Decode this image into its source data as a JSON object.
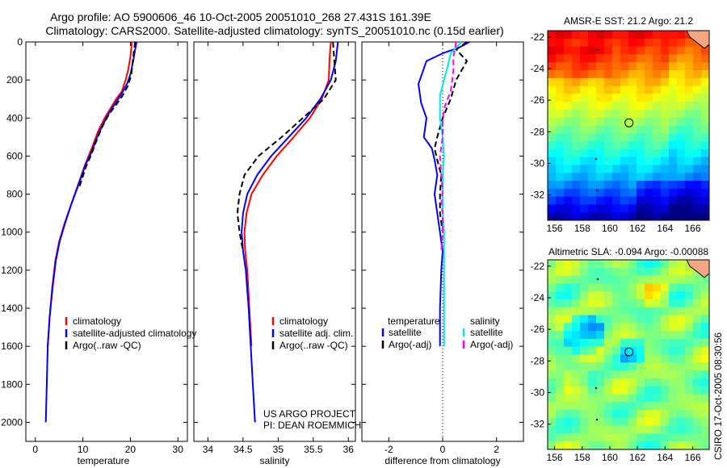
{
  "header": {
    "line1": "Argo profile: AO 5900606_46 10-Oct-2005 20051010_268 27.431S 161.39E",
    "line2": "Climatology: CARS2000. Satellite-adjusted climatology: synTS_20051010.nc (0.15d earlier)"
  },
  "side_label": "CSIRO 17-Oct-2005 08:30:56",
  "colors": {
    "red": "#ff0000",
    "blue": "#0000ff",
    "black": "#000000",
    "cyan": "#00e5ee",
    "magenta": "#ff00ff"
  },
  "chart_data": [
    {
      "type": "line",
      "name": "temperature-panel",
      "xlabel": "temperature",
      "ylabel": "",
      "xlim": [
        -2,
        32
      ],
      "ylim": [
        0,
        2100
      ],
      "y_reversed": true,
      "xticks": [
        0,
        10,
        20,
        30
      ],
      "yticks": [
        0,
        200,
        400,
        600,
        800,
        1000,
        1200,
        1400,
        1600,
        1800,
        2000
      ],
      "legend": [
        "climatology",
        "satellite-adjusted climatology",
        "Argo(..raw -QC)"
      ],
      "series": [
        {
          "name": "climatology",
          "color": "red",
          "dash": false,
          "points": [
            [
              20.3,
              0
            ],
            [
              20.2,
              30
            ],
            [
              20.0,
              80
            ],
            [
              19.5,
              150
            ],
            [
              19.0,
              200
            ],
            [
              18.2,
              260
            ],
            [
              17.0,
              300
            ],
            [
              15.8,
              350
            ],
            [
              14.6,
              400
            ],
            [
              13.2,
              470
            ],
            [
              12.0,
              550
            ],
            [
              10.4,
              650
            ],
            [
              9.0,
              750
            ],
            [
              7.6,
              850
            ],
            [
              6.2,
              950
            ],
            [
              5.0,
              1050
            ],
            [
              4.2,
              1150
            ],
            [
              3.5,
              1300
            ],
            [
              3.0,
              1450
            ],
            [
              2.6,
              1600
            ]
          ]
        },
        {
          "name": "satellite-adjusted climatology",
          "color": "blue",
          "dash": false,
          "points": [
            [
              21.3,
              0
            ],
            [
              21.0,
              40
            ],
            [
              20.6,
              100
            ],
            [
              20.0,
              170
            ],
            [
              19.3,
              220
            ],
            [
              18.2,
              270
            ],
            [
              16.9,
              320
            ],
            [
              15.6,
              370
            ],
            [
              14.3,
              430
            ],
            [
              13.0,
              500
            ],
            [
              11.8,
              580
            ],
            [
              10.5,
              650
            ],
            [
              9.1,
              750
            ],
            [
              7.6,
              850
            ],
            [
              6.3,
              950
            ],
            [
              5.1,
              1050
            ],
            [
              4.3,
              1150
            ],
            [
              3.6,
              1300
            ],
            [
              3.0,
              1450
            ],
            [
              2.6,
              1600
            ],
            [
              2.4,
              1800
            ],
            [
              2.2,
              2000
            ]
          ]
        },
        {
          "name": "Argo(..raw -QC)",
          "color": "black",
          "dash": true,
          "points": [
            [
              21.0,
              0
            ],
            [
              20.8,
              40
            ],
            [
              20.5,
              100
            ],
            [
              20.2,
              170
            ],
            [
              19.5,
              230
            ],
            [
              18.4,
              280
            ],
            [
              17.0,
              330
            ],
            [
              15.5,
              380
            ],
            [
              14.2,
              440
            ],
            [
              13.0,
              510
            ],
            [
              11.8,
              590
            ],
            [
              10.6,
              660
            ],
            [
              9.3,
              760
            ]
          ]
        }
      ]
    },
    {
      "type": "line",
      "name": "salinity-panel",
      "xlabel": "salinity",
      "ylabel": "",
      "xlim": [
        33.8,
        36.1
      ],
      "ylim": [
        0,
        2100
      ],
      "y_reversed": true,
      "xticks": [
        34,
        34.5,
        35,
        35.5,
        36
      ],
      "yticks": [
        0,
        200,
        400,
        600,
        800,
        1000,
        1200,
        1400,
        1600,
        1800,
        2000
      ],
      "legend": [
        "climatology",
        "satellite adj. clim.",
        "Argo(..raw -QC)"
      ],
      "series": [
        {
          "name": "climatology",
          "color": "red",
          "dash": false,
          "points": [
            [
              35.75,
              0
            ],
            [
              35.73,
              100
            ],
            [
              35.72,
              200
            ],
            [
              35.62,
              300
            ],
            [
              35.45,
              400
            ],
            [
              35.22,
              500
            ],
            [
              34.98,
              600
            ],
            [
              34.78,
              700
            ],
            [
              34.62,
              800
            ],
            [
              34.55,
              900
            ],
            [
              34.52,
              1000
            ],
            [
              34.53,
              1100
            ],
            [
              34.56,
              1200
            ],
            [
              34.59,
              1400
            ],
            [
              34.62,
              1600
            ]
          ]
        },
        {
          "name": "satellite adj. clim.",
          "color": "blue",
          "dash": false,
          "points": [
            [
              35.85,
              0
            ],
            [
              35.82,
              100
            ],
            [
              35.75,
              200
            ],
            [
              35.6,
              300
            ],
            [
              35.4,
              400
            ],
            [
              35.15,
              500
            ],
            [
              34.9,
              600
            ],
            [
              34.7,
              700
            ],
            [
              34.56,
              800
            ],
            [
              34.5,
              900
            ],
            [
              34.48,
              1000
            ],
            [
              34.5,
              1100
            ],
            [
              34.54,
              1200
            ],
            [
              34.58,
              1400
            ],
            [
              34.61,
              1600
            ],
            [
              34.64,
              1800
            ],
            [
              34.67,
              2000
            ]
          ]
        },
        {
          "name": "Argo(..raw -QC)",
          "color": "black",
          "dash": true,
          "points": [
            [
              35.78,
              0
            ],
            [
              35.8,
              100
            ],
            [
              35.82,
              200
            ],
            [
              35.65,
              300
            ],
            [
              35.35,
              400
            ],
            [
              35.05,
              500
            ],
            [
              34.72,
              600
            ],
            [
              34.52,
              700
            ],
            [
              34.45,
              800
            ],
            [
              34.42,
              900
            ],
            [
              34.45,
              1000
            ],
            [
              34.5,
              1100
            ]
          ]
        }
      ]
    },
    {
      "type": "line",
      "name": "difference-panel",
      "xlabel": "difference from climatology",
      "ylabel": "",
      "xlim": [
        -3,
        3
      ],
      "ylim": [
        0,
        2100
      ],
      "y_reversed": true,
      "xticks": [
        -2,
        0,
        2
      ],
      "yticks": [
        0,
        200,
        400,
        600,
        800,
        1000,
        1200,
        1400,
        1600,
        1800,
        2000
      ],
      "legend_titles": [
        "temperature",
        "salinity"
      ],
      "legend": [
        "satellite",
        "Argo(-adj)",
        "satellite",
        "Argo(-adj)"
      ],
      "series": [
        {
          "name": "temperature satellite",
          "color": "blue",
          "dash": false,
          "points": [
            [
              1.0,
              0
            ],
            [
              0.6,
              30
            ],
            [
              0.0,
              60
            ],
            [
              -0.6,
              100
            ],
            [
              -0.9,
              220
            ],
            [
              -0.8,
              320
            ],
            [
              -0.6,
              400
            ],
            [
              -0.7,
              500
            ],
            [
              -0.4,
              560
            ],
            [
              -0.3,
              620
            ],
            [
              -0.2,
              700
            ],
            [
              -0.3,
              800
            ],
            [
              -0.2,
              900
            ],
            [
              -0.1,
              1000
            ],
            [
              0.0,
              1100
            ],
            [
              -0.05,
              1200
            ],
            [
              -0.1,
              1400
            ],
            [
              -0.1,
              1600
            ]
          ]
        },
        {
          "name": "temperature Argo(-adj)",
          "color": "black",
          "dash": true,
          "points": [
            [
              0.9,
              0
            ],
            [
              0.5,
              40
            ],
            [
              0.9,
              100
            ],
            [
              0.5,
              200
            ],
            [
              0.3,
              300
            ],
            [
              0.0,
              400
            ],
            [
              -0.2,
              500
            ],
            [
              -0.3,
              560
            ],
            [
              -0.2,
              620
            ],
            [
              -0.05,
              700
            ],
            [
              -0.1,
              800
            ],
            [
              -0.1,
              900
            ],
            [
              0.0,
              1000
            ]
          ]
        },
        {
          "name": "salinity satellite",
          "color": "cyan",
          "dash": false,
          "points": [
            [
              0.7,
              0
            ],
            [
              0.3,
              60
            ],
            [
              0.2,
              120
            ],
            [
              -0.1,
              280
            ],
            [
              -0.1,
              400
            ],
            [
              0.0,
              500
            ],
            [
              0.05,
              600
            ],
            [
              0.0,
              700
            ],
            [
              0.0,
              800
            ],
            [
              0.0,
              900
            ],
            [
              0.05,
              1000
            ],
            [
              0.05,
              1200
            ],
            [
              0.05,
              1400
            ],
            [
              0.05,
              1600
            ]
          ]
        },
        {
          "name": "salinity Argo(-adj)",
          "color": "magenta",
          "dash": true,
          "points": [
            [
              0.5,
              0
            ],
            [
              0.4,
              80
            ],
            [
              0.4,
              150
            ],
            [
              0.3,
              260
            ],
            [
              0.1,
              330
            ],
            [
              0.0,
              400
            ],
            [
              0.0,
              500
            ],
            [
              -0.1,
              600
            ],
            [
              -0.05,
              700
            ],
            [
              0.0,
              780
            ],
            [
              -0.05,
              850
            ],
            [
              0.0,
              900
            ],
            [
              0.0,
              1000
            ],
            [
              -0.05,
              1100
            ]
          ]
        }
      ],
      "zero_line": 0
    },
    {
      "type": "heatmap",
      "name": "sst-map",
      "title": "AMSR-E SST: 21.2 Argo: 21.2",
      "xticks": [
        156,
        158,
        160,
        162,
        164,
        166
      ],
      "yticks": [
        -22,
        -24,
        -26,
        -28,
        -30,
        -32
      ],
      "xlim": [
        155.5,
        167.2
      ],
      "ylim": [
        -33.6,
        -21.6
      ],
      "marker": [
        161.39,
        -27.431
      ]
    },
    {
      "type": "heatmap",
      "name": "sla-map",
      "title": "Altimetric SLA: -0.094 Argo: -0.00088",
      "xticks": [
        156,
        158,
        160,
        162,
        164,
        166
      ],
      "yticks": [
        -22,
        -24,
        -26,
        -28,
        -30,
        -32
      ],
      "xlim": [
        155.5,
        167.2
      ],
      "ylim": [
        -33.6,
        -21.6
      ],
      "marker": [
        161.39,
        -27.431
      ]
    }
  ],
  "credit": [
    "US ARGO PROJECT",
    "PI: DEAN ROEMMICH"
  ]
}
